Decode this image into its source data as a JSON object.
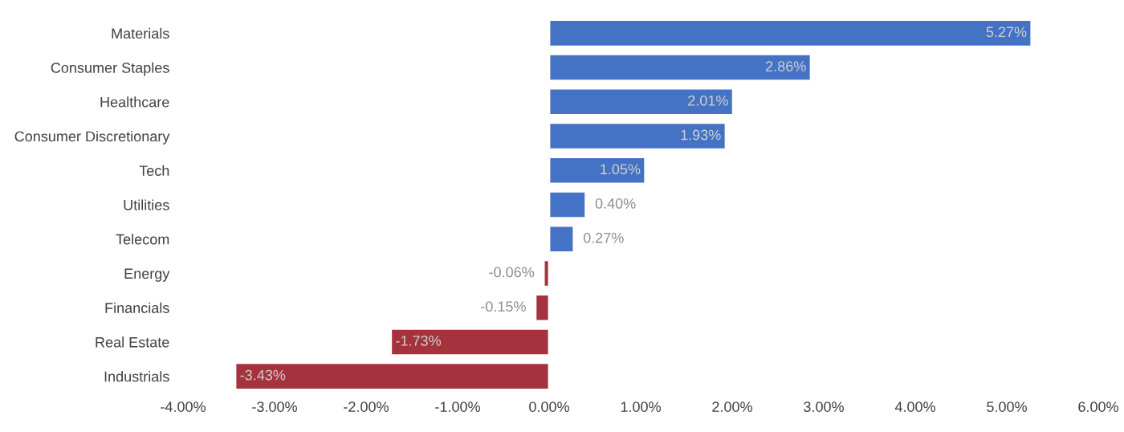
{
  "chart_data": {
    "type": "bar",
    "orientation": "horizontal",
    "categories": [
      "Materials",
      "Consumer Staples",
      "Healthcare",
      "Consumer Discretionary",
      "Tech",
      "Utilities",
      "Telecom",
      "Energy",
      "Financials",
      "Real Estate",
      "Industrials"
    ],
    "values": [
      5.27,
      2.86,
      2.01,
      1.93,
      1.05,
      0.4,
      0.27,
      -0.06,
      -0.15,
      -1.73,
      -3.43
    ],
    "colors": [
      "#4472c4",
      "#4472c4",
      "#4472c4",
      "#4472c4",
      "#4472c4",
      "#4472c4",
      "#4472c4",
      "#a5333d",
      "#a5333d",
      "#a5333d",
      "#a5333d"
    ],
    "value_labels": [
      "5.27%",
      "2.86%",
      "2.01%",
      "1.93%",
      "1.05%",
      "0.40%",
      "0.27%",
      "-0.06%",
      "-0.15%",
      "-1.73%",
      "-3.43%"
    ],
    "xlim": [
      -4,
      6
    ],
    "xticks": [
      {
        "value": -4,
        "label": "-4.00%"
      },
      {
        "value": -3,
        "label": "-3.00%"
      },
      {
        "value": -2,
        "label": "-2.00%"
      },
      {
        "value": -1,
        "label": "-1.00%"
      },
      {
        "value": 0,
        "label": "0.00%"
      },
      {
        "value": 1,
        "label": "1.00%"
      },
      {
        "value": 2,
        "label": "2.00%"
      },
      {
        "value": 3,
        "label": "3.00%"
      },
      {
        "value": 4,
        "label": "4.00%"
      },
      {
        "value": 5,
        "label": "5.00%"
      },
      {
        "value": 6,
        "label": "6.00%"
      }
    ],
    "grid": false,
    "legend": false
  }
}
